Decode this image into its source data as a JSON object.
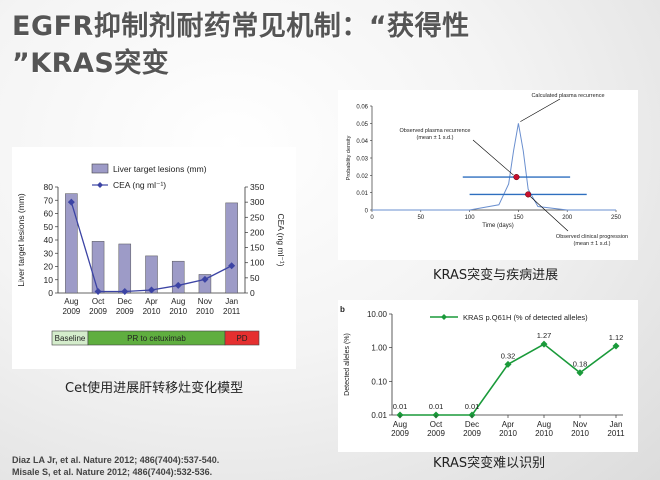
{
  "slide": {
    "title_line1": "EGFR抑制剂耐药常见机制：“获得性",
    "title_line2": "”KRAS突变",
    "captions": {
      "left": "Cet使用进展肝转移灶变化模型",
      "top_right": "KRAS突变与疾病进展",
      "bottom_right": "KRAS突变难以识别"
    },
    "references": [
      "Diaz LA Jr, et al. Nature 2012; 486(7404):537-540.",
      "Misale S, et al. Nature 2012; 486(7404):532-536."
    ]
  },
  "chart_data": [
    {
      "type": "bar",
      "categories": [
        "Aug\n2009",
        "Oct\n2009",
        "Dec\n2009",
        "Apr\n2010",
        "Aug\n2010",
        "Nov\n2010",
        "Jan\n2011"
      ],
      "series": [
        {
          "name": "Liver target lesions (mm)",
          "values": [
            75,
            39,
            37,
            28,
            24,
            14,
            68
          ],
          "color": "#9d9bc7"
        },
        {
          "name": "CEA (ng ml⁻¹)",
          "type": "line",
          "values": [
            300,
            5,
            5,
            10,
            25,
            45,
            90
          ],
          "color": "#3c44a4"
        }
      ],
      "ylabel": "Liver target lesions (mm)",
      "ylim": [
        0,
        80
      ],
      "yticks": [
        0,
        10,
        20,
        30,
        40,
        50,
        60,
        70,
        80
      ],
      "ylabel_right": "CEA (ng ml⁻¹)",
      "ylim_right": [
        0,
        350
      ],
      "yticks_right": [
        0,
        50,
        100,
        150,
        200,
        250,
        300,
        350
      ],
      "phases": [
        {
          "label": "Baseline",
          "color": "#d4eccb"
        },
        {
          "label": "PR to cetuximab",
          "color": "#5fae3f"
        },
        {
          "label": "PD",
          "color": "#e53030"
        }
      ]
    },
    {
      "type": "line",
      "x": [
        0,
        50,
        100,
        130,
        140,
        145,
        150,
        155,
        160,
        170,
        200,
        250
      ],
      "y": [
        0,
        0,
        0,
        0.003,
        0.015,
        0.034,
        0.05,
        0.034,
        0.012,
        0.002,
        0,
        0
      ],
      "xlabel": "Time (days)",
      "ylabel": "Probability density",
      "xlim": [
        0,
        250
      ],
      "ylim": [
        0,
        0.06
      ],
      "xticks": [
        0,
        50,
        100,
        150,
        200,
        250
      ],
      "yticks": [
        0,
        0.01,
        0.02,
        0.03,
        0.04,
        0.05,
        0.06
      ],
      "points": [
        {
          "label": "Observed plasma recurrence\n(mean ± 1 s.d.)",
          "mean": 148,
          "sd": 55,
          "y": 0.019
        },
        {
          "label": "Observed clinical progression\n(mean ± 1 s.d.)",
          "mean": 160,
          "sd": 60,
          "y": 0.009
        }
      ],
      "curve_label": "Calculated plasma recurrence",
      "curve_color": "#6a8fcf",
      "bar_color": "#2e6fbf",
      "point_color": "#c8102e"
    },
    {
      "type": "line",
      "panel_label": "b",
      "categories": [
        "Aug\n2009",
        "Oct\n2009",
        "Dec\n2009",
        "Apr\n2010",
        "Aug\n2010",
        "Nov\n2010",
        "Jan\n2011"
      ],
      "series": [
        {
          "name": "KRAS p.Q61H (% of detected alleles)",
          "values": [
            0.01,
            0.01,
            0.01,
            0.32,
            1.27,
            0.18,
            1.12
          ],
          "color": "#1a9a3a"
        }
      ],
      "data_labels": [
        "0.01",
        "0.01",
        "0.01",
        "0.32",
        "1.27",
        "0.18",
        "1.12"
      ],
      "ylabel": "Detected alleles (%)",
      "yscale": "log",
      "ylim": [
        0.01,
        10
      ],
      "yticks": [
        "0.01",
        "0.10",
        "1.00",
        "10.00"
      ]
    }
  ]
}
